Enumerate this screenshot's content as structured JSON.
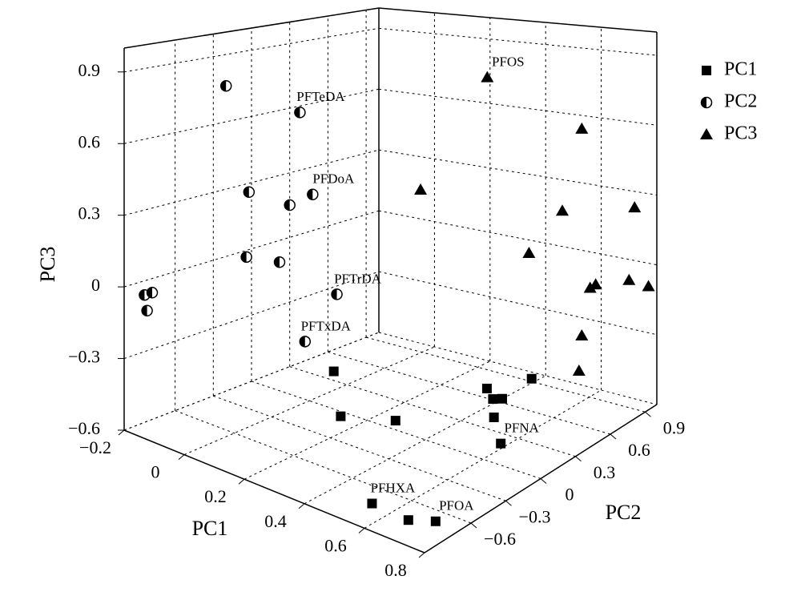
{
  "chart_data": {
    "type": "scatter3d",
    "xlabel": "PC1",
    "ylabel": "PC2",
    "zlabel": "PC3",
    "xlim": [
      -0.2,
      0.8
    ],
    "ylim": [
      -1.0,
      1.0
    ],
    "zlim": [
      -0.6,
      1.0
    ],
    "xticks": [
      {
        "value": -0.2,
        "label": "−0.2"
      },
      0,
      0.2,
      0.4,
      0.6,
      0.8
    ],
    "yticks": [
      {
        "value": -0.6,
        "label": "−0.6"
      },
      {
        "value": -0.3,
        "label": "−0.3"
      },
      0,
      0.3,
      0.6,
      0.9
    ],
    "zticks": [
      {
        "value": -0.6,
        "label": "−0.6"
      },
      {
        "value": -0.3,
        "label": "−0.3"
      },
      0,
      0.3,
      0.6,
      0.9
    ],
    "grid": true,
    "legend": "upper right",
    "series": [
      {
        "name": "PC1",
        "marker": "square",
        "color": "#000000",
        "x": [
          -0.09,
          0.13,
          0.26,
          0.32,
          0.38,
          0.4,
          0.46,
          0.38,
          0.58,
          0.53,
          0.66,
          0.72
        ],
        "y": [
          0.4,
          -0.05,
          0.09,
          0.7,
          0.61,
          0.64,
          0.43,
          0.93,
          0.2,
          -0.76,
          -0.78,
          -0.7
        ],
        "z": [
          -0.6,
          -0.6,
          -0.6,
          -0.6,
          -0.6,
          -0.6,
          -0.6,
          -0.6,
          -0.6,
          -0.6,
          -0.6,
          -0.6
        ],
        "labels": [
          null,
          null,
          null,
          null,
          null,
          null,
          null,
          null,
          "PFNA",
          "PFHXA",
          null,
          "PFOA"
        ]
      },
      {
        "name": "PC2",
        "marker": "half-circle",
        "color": "#000000",
        "x": [
          -0.2,
          -0.2,
          -0.2,
          -0.2,
          -0.2,
          -0.2,
          -0.2,
          -0.2,
          -0.2,
          -0.2,
          -0.2,
          -0.2
        ],
        "y": [
          -0.2,
          0.38,
          -0.02,
          0.48,
          0.3,
          -0.04,
          0.22,
          0.67,
          -0.84,
          -0.78,
          -0.82,
          0.42
        ],
        "z": [
          0.76,
          0.57,
          0.26,
          0.17,
          0.15,
          -0.03,
          -0.1,
          -0.34,
          -0.06,
          -0.06,
          -0.13,
          -0.51
        ],
        "labels": [
          null,
          "PFTeDA",
          null,
          "PFDoA",
          null,
          null,
          null,
          "PFTrDA",
          null,
          null,
          null,
          "PFTxDA"
        ]
      },
      {
        "name": "PC3",
        "marker": "triangle",
        "color": "#000000",
        "x": [
          0.19,
          0.53,
          -0.05,
          0.46,
          0.72,
          0.34,
          0.58,
          0.56,
          0.7,
          0.77,
          0.53,
          0.52
        ],
        "y": [
          1.0,
          1.0,
          1.0,
          1.0,
          1.0,
          1.0,
          1.0,
          1.0,
          1.0,
          1.0,
          1.0,
          1.0
        ],
        "z": [
          0.72,
          0.54,
          0.14,
          0.16,
          0.23,
          -0.06,
          -0.14,
          -0.16,
          -0.09,
          -0.1,
          -0.38,
          -0.54
        ],
        "labels": [
          "PFOS",
          null,
          null,
          null,
          null,
          null,
          null,
          null,
          null,
          null,
          null,
          null
        ]
      }
    ]
  }
}
